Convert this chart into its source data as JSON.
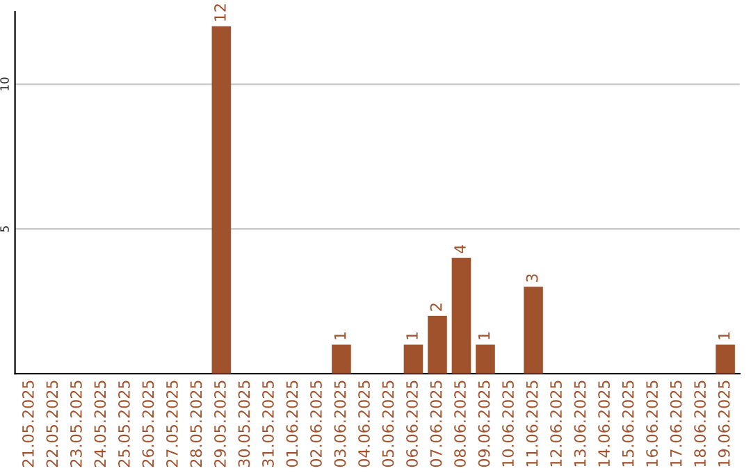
{
  "chart_data": {
    "type": "bar",
    "categories": [
      "21.05.2025",
      "22.05.2025",
      "23.05.2025",
      "24.05.2025",
      "25.05.2025",
      "26.05.2025",
      "27.05.2025",
      "28.05.2025",
      "29.05.2025",
      "30.05.2025",
      "31.05.2025",
      "01.06.2025",
      "02.06.2025",
      "03.06.2025",
      "04.06.2025",
      "05.06.2025",
      "06.06.2025",
      "07.06.2025",
      "08.06.2025",
      "09.06.2025",
      "10.06.2025",
      "11.06.2025",
      "12.06.2025",
      "13.06.2025",
      "14.06.2025",
      "15.06.2025",
      "16.06.2025",
      "17.06.2025",
      "18.06.2025",
      "19.06.2025"
    ],
    "values": [
      0,
      0,
      0,
      0,
      0,
      0,
      0,
      0,
      12,
      0,
      0,
      0,
      0,
      1,
      0,
      0,
      1,
      2,
      4,
      1,
      0,
      3,
      0,
      0,
      0,
      0,
      0,
      0,
      0,
      1
    ],
    "value_labels": [
      null,
      null,
      null,
      null,
      null,
      null,
      null,
      null,
      "12",
      null,
      null,
      null,
      null,
      "1",
      null,
      null,
      "1",
      "2",
      "4",
      "1",
      null,
      "3",
      null,
      null,
      null,
      null,
      null,
      null,
      null,
      "1"
    ],
    "color": "#a0522d",
    "ylim": [
      0,
      12.5
    ],
    "yticks": [
      5,
      10
    ],
    "grid": "y"
  }
}
